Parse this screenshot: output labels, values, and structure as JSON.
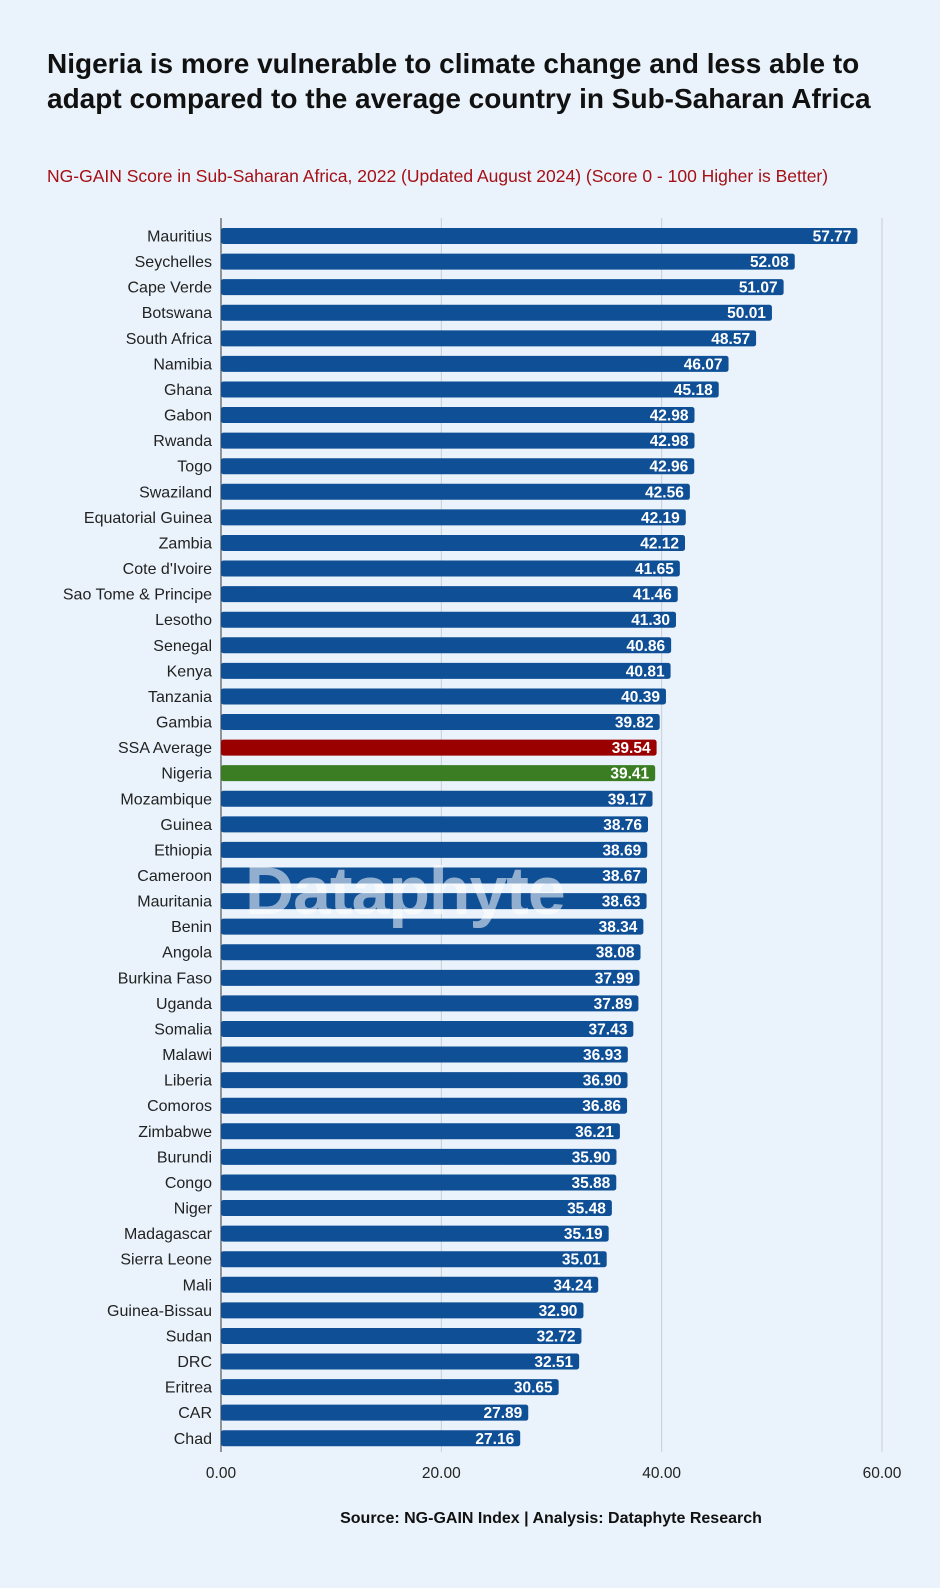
{
  "title": "Nigeria is more vulnerable to climate change and less able to adapt compared to the average country in Sub-Saharan Africa",
  "subtitle": "NG-GAIN Score in Sub-Saharan Africa, 2022 (Updated August 2024) (Score 0 - 100 Higher is Better)",
  "source": "Source: NG-GAIN Index | Analysis: Dataphyte Research",
  "watermark": "Dataphyte",
  "colors": {
    "bar_default": "#0f4f96",
    "bar_ssa_average": "#9b0000",
    "bar_nigeria": "#3a7d22",
    "background": "#eaf3fb",
    "subtitle": "#a50f15"
  },
  "chart_data": {
    "type": "bar",
    "orientation": "horizontal",
    "title": "Nigeria is more vulnerable to climate change and less able to adapt compared to the average country in Sub-Saharan Africa",
    "subtitle": "NG-GAIN Score in Sub-Saharan Africa, 2022 (Updated August 2024) (Score 0 - 100 Higher is Better)",
    "xlabel": "",
    "ylabel": "",
    "xlim": [
      0,
      60
    ],
    "xticks": [
      "0.00",
      "20.00",
      "40.00",
      "60.00"
    ],
    "grid": true,
    "categories": [
      "Mauritius",
      "Seychelles",
      "Cape Verde",
      "Botswana",
      "South Africa",
      "Namibia",
      "Ghana",
      "Gabon",
      "Rwanda",
      "Togo",
      "Swaziland",
      "Equatorial Guinea",
      "Zambia",
      "Cote d'Ivoire",
      "Sao Tome & Principe",
      "Lesotho",
      "Senegal",
      "Kenya",
      "Tanzania",
      "Gambia",
      "SSA Average",
      "Nigeria",
      "Mozambique",
      "Guinea",
      "Ethiopia",
      "Cameroon",
      "Mauritania",
      "Benin",
      "Angola",
      "Burkina Faso",
      "Uganda",
      "Somalia",
      "Malawi",
      "Liberia",
      "Comoros",
      "Zimbabwe",
      "Burundi",
      "Congo",
      "Niger",
      "Madagascar",
      "Sierra Leone",
      "Mali",
      "Guinea-Bissau",
      "Sudan",
      "DRC",
      "Eritrea",
      "CAR",
      "Chad"
    ],
    "values": [
      57.77,
      52.08,
      51.07,
      50.01,
      48.57,
      46.07,
      45.18,
      42.98,
      42.98,
      42.96,
      42.56,
      42.19,
      42.12,
      41.65,
      41.46,
      41.3,
      40.86,
      40.81,
      40.39,
      39.82,
      39.54,
      39.41,
      39.17,
      38.76,
      38.69,
      38.67,
      38.63,
      38.34,
      38.08,
      37.99,
      37.89,
      37.43,
      36.93,
      36.9,
      36.86,
      36.21,
      35.9,
      35.88,
      35.48,
      35.19,
      35.01,
      34.24,
      32.9,
      32.72,
      32.51,
      30.65,
      27.89,
      27.16
    ],
    "value_labels": [
      "57.77",
      "52.08",
      "51.07",
      "50.01",
      "48.57",
      "46.07",
      "45.18",
      "42.98",
      "42.98",
      "42.96",
      "42.56",
      "42.19",
      "42.12",
      "41.65",
      "41.46",
      "41.30",
      "40.86",
      "40.81",
      "40.39",
      "39.82",
      "39.54",
      "39.41",
      "39.17",
      "38.76",
      "38.69",
      "38.67",
      "38.63",
      "38.34",
      "38.08",
      "37.99",
      "37.89",
      "37.43",
      "36.93",
      "36.90",
      "36.86",
      "36.21",
      "35.90",
      "35.88",
      "35.48",
      "35.19",
      "35.01",
      "34.24",
      "32.90",
      "32.72",
      "32.51",
      "30.65",
      "27.89",
      "27.16"
    ],
    "highlight": {
      "SSA Average": "#9b0000",
      "Nigeria": "#3a7d22"
    }
  }
}
